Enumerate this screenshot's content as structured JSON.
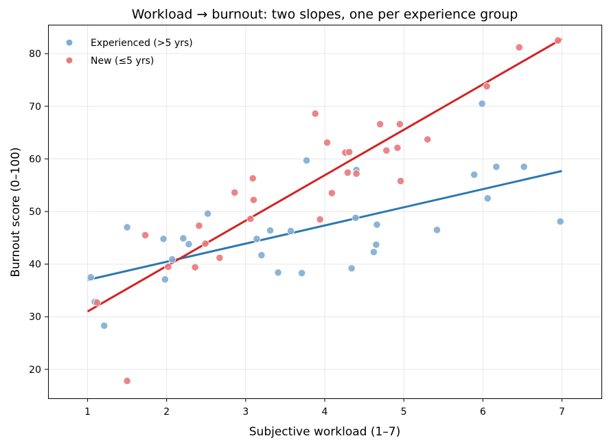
{
  "chart_data": {
    "type": "scatter",
    "title": "Workload → burnout: two slopes, one per experience group",
    "xlabel": "Subjective workload (1–7)",
    "ylabel": "Burnout score (0–100)",
    "xlim": [
      0.5,
      7.5
    ],
    "ylim": [
      14.5,
      85.5
    ],
    "xticks": [
      1,
      2,
      3,
      4,
      5,
      6,
      7
    ],
    "yticks": [
      20,
      30,
      40,
      50,
      60,
      70,
      80
    ],
    "grid": true,
    "legend_position": "top-left",
    "series": [
      {
        "name": "Experienced (>5 yrs)",
        "color": "#7facd3",
        "line_color": "#2b78b2",
        "fit": {
          "x": [
            1,
            7
          ],
          "y": [
            37.0,
            57.7
          ]
        },
        "points": [
          [
            1.04,
            37.5
          ],
          [
            1.09,
            32.8
          ],
          [
            1.21,
            28.3
          ],
          [
            1.5,
            47.0
          ],
          [
            1.96,
            44.8
          ],
          [
            1.98,
            37.1
          ],
          [
            2.07,
            40.9
          ],
          [
            2.21,
            44.9
          ],
          [
            2.28,
            43.8
          ],
          [
            2.52,
            49.6
          ],
          [
            3.14,
            44.8
          ],
          [
            3.2,
            41.7
          ],
          [
            3.31,
            46.4
          ],
          [
            3.41,
            38.4
          ],
          [
            3.57,
            46.3
          ],
          [
            3.71,
            38.3
          ],
          [
            3.77,
            59.7
          ],
          [
            4.34,
            39.2
          ],
          [
            4.39,
            48.8
          ],
          [
            4.4,
            57.9
          ],
          [
            4.62,
            42.3
          ],
          [
            4.65,
            43.7
          ],
          [
            4.66,
            47.5
          ],
          [
            5.42,
            46.5
          ],
          [
            5.89,
            57.0
          ],
          [
            5.99,
            70.5
          ],
          [
            6.06,
            52.5
          ],
          [
            6.17,
            58.5
          ],
          [
            6.52,
            58.5
          ],
          [
            6.98,
            48.1
          ]
        ]
      },
      {
        "name": "New (≤5 yrs)",
        "color": "#e8797b",
        "line_color": "#d42323",
        "fit": {
          "x": [
            1,
            7
          ],
          "y": [
            31.0,
            82.8
          ]
        },
        "points": [
          [
            1.12,
            32.7
          ],
          [
            1.5,
            17.8
          ],
          [
            1.73,
            45.5
          ],
          [
            2.02,
            39.5
          ],
          [
            2.36,
            39.4
          ],
          [
            2.41,
            47.3
          ],
          [
            2.49,
            43.9
          ],
          [
            2.67,
            41.2
          ],
          [
            2.86,
            53.6
          ],
          [
            3.06,
            48.6
          ],
          [
            3.09,
            56.3
          ],
          [
            3.1,
            52.2
          ],
          [
            3.88,
            68.6
          ],
          [
            3.94,
            48.5
          ],
          [
            4.03,
            63.1
          ],
          [
            4.09,
            53.5
          ],
          [
            4.26,
            61.2
          ],
          [
            4.29,
            57.4
          ],
          [
            4.31,
            61.3
          ],
          [
            4.4,
            57.2
          ],
          [
            4.7,
            66.6
          ],
          [
            4.78,
            61.6
          ],
          [
            4.92,
            62.1
          ],
          [
            4.95,
            66.6
          ],
          [
            4.96,
            55.8
          ],
          [
            5.3,
            63.7
          ],
          [
            6.05,
            73.8
          ],
          [
            6.46,
            81.2
          ],
          [
            6.95,
            82.5
          ]
        ]
      }
    ]
  }
}
